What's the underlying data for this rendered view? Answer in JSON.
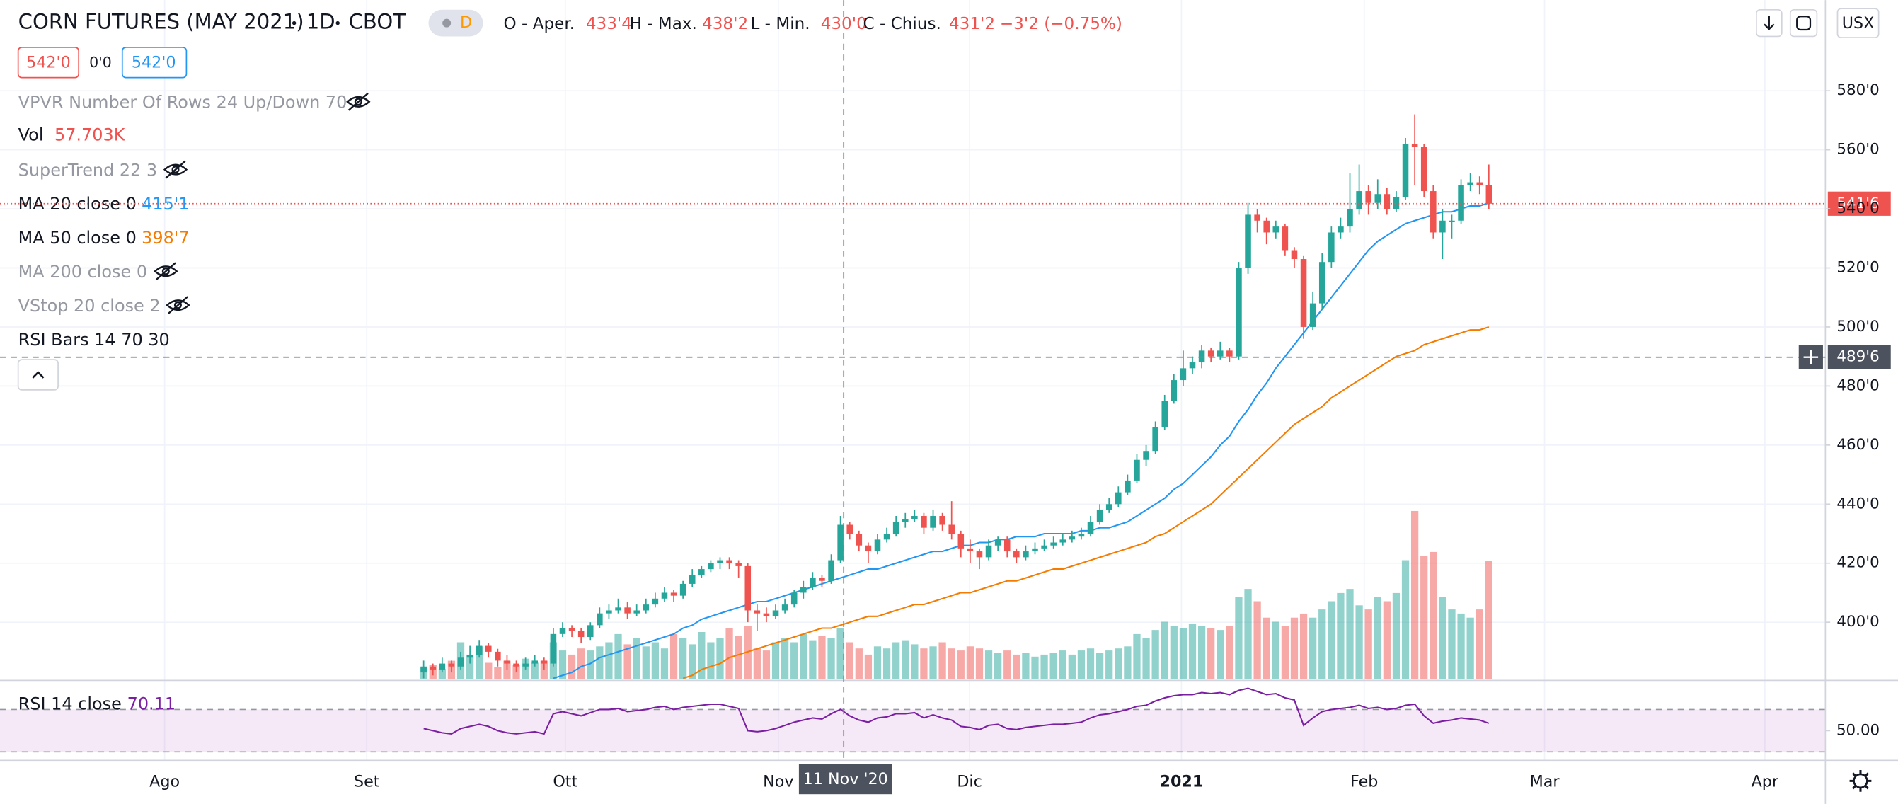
{
  "header": {
    "symbol": "CORN FUTURES (MAY 2021)",
    "interval": "1D",
    "exchange": "CBOT",
    "badge": "D",
    "ohlc_legend": [
      {
        "label": "O - Aper.",
        "value": "433'4"
      },
      {
        "label": "H - Max.",
        "value": "438'2"
      },
      {
        "label": "L - Min.",
        "value": "430'0"
      },
      {
        "label": "C - Chius.",
        "value": "431'2"
      }
    ],
    "change": "−3'2 (−0.75%)",
    "sell": "542'0",
    "spread": "0'0",
    "buy": "542'0",
    "currency": "USX",
    "indicators": [
      "VPVR Number Of Rows 24 Up/Down 70",
      "SuperTrend 22 3",
      "MA 200 close 0",
      "VStop 20 close 2",
      "RSI Bars 14 70 30"
    ]
  },
  "chart_data": {
    "type": "candlestick",
    "up_color": "#26a69a",
    "down_color": "#ef5350",
    "ohlc": [
      [
        383,
        387,
        381,
        385
      ],
      [
        385,
        386,
        382,
        384
      ],
      [
        384,
        388,
        383,
        386
      ],
      [
        386,
        387,
        383,
        385
      ],
      [
        385,
        390,
        384,
        388
      ],
      [
        388,
        392,
        386,
        389
      ],
      [
        389,
        394,
        388,
        392
      ],
      [
        392,
        393,
        388,
        390
      ],
      [
        390,
        391,
        385,
        387
      ],
      [
        387,
        389,
        384,
        386
      ],
      [
        386,
        387,
        383,
        385
      ],
      [
        385,
        388,
        384,
        386
      ],
      [
        386,
        389,
        385,
        387
      ],
      [
        387,
        388,
        384,
        386
      ],
      [
        386,
        398,
        385,
        396
      ],
      [
        396,
        400,
        395,
        398
      ],
      [
        398,
        399,
        395,
        397
      ],
      [
        397,
        398,
        393,
        395
      ],
      [
        395,
        400,
        394,
        399
      ],
      [
        399,
        405,
        398,
        403
      ],
      [
        403,
        406,
        401,
        404
      ],
      [
        404,
        408,
        403,
        405
      ],
      [
        405,
        407,
        401,
        403
      ],
      [
        403,
        406,
        402,
        404
      ],
      [
        404,
        408,
        403,
        406
      ],
      [
        406,
        410,
        405,
        408
      ],
      [
        408,
        412,
        407,
        410
      ],
      [
        410,
        411,
        407,
        409
      ],
      [
        409,
        414,
        408,
        413
      ],
      [
        413,
        418,
        412,
        416
      ],
      [
        416,
        419,
        415,
        418
      ],
      [
        418,
        421,
        417,
        420
      ],
      [
        420,
        422,
        418,
        421
      ],
      [
        421,
        422,
        418,
        420
      ],
      [
        420,
        421,
        415,
        419
      ],
      [
        419,
        420,
        400,
        404
      ],
      [
        404,
        406,
        397,
        403
      ],
      [
        403,
        405,
        400,
        402
      ],
      [
        402,
        406,
        401,
        404
      ],
      [
        404,
        408,
        403,
        406
      ],
      [
        406,
        411,
        405,
        410
      ],
      [
        410,
        414,
        408,
        412
      ],
      [
        412,
        417,
        411,
        415
      ],
      [
        415,
        416,
        412,
        414
      ],
      [
        414,
        423,
        413,
        421
      ],
      [
        421,
        436,
        420,
        433
      ],
      [
        433,
        434,
        428,
        430
      ],
      [
        430,
        431,
        424,
        426
      ],
      [
        426,
        427,
        420,
        424
      ],
      [
        424,
        430,
        423,
        428
      ],
      [
        428,
        432,
        427,
        430
      ],
      [
        430,
        436,
        429,
        434
      ],
      [
        434,
        437,
        432,
        435
      ],
      [
        435,
        438,
        434,
        436
      ],
      [
        436,
        437,
        430,
        432
      ],
      [
        432,
        438,
        431,
        436
      ],
      [
        436,
        437,
        431,
        433
      ],
      [
        433,
        441,
        428,
        430
      ],
      [
        430,
        431,
        422,
        425
      ],
      [
        425,
        428,
        420,
        424
      ],
      [
        424,
        425,
        418,
        422
      ],
      [
        422,
        428,
        421,
        426
      ],
      [
        426,
        429,
        424,
        428
      ],
      [
        428,
        429,
        422,
        424
      ],
      [
        424,
        425,
        420,
        422
      ],
      [
        422,
        426,
        421,
        424
      ],
      [
        424,
        427,
        423,
        425
      ],
      [
        425,
        428,
        424,
        426
      ],
      [
        426,
        429,
        425,
        427
      ],
      [
        427,
        430,
        426,
        428
      ],
      [
        428,
        431,
        427,
        429
      ],
      [
        429,
        432,
        428,
        430
      ],
      [
        430,
        436,
        429,
        434
      ],
      [
        434,
        440,
        433,
        438
      ],
      [
        438,
        442,
        437,
        440
      ],
      [
        440,
        446,
        439,
        444
      ],
      [
        444,
        450,
        443,
        448
      ],
      [
        448,
        457,
        447,
        455
      ],
      [
        455,
        460,
        453,
        458
      ],
      [
        458,
        468,
        457,
        466
      ],
      [
        466,
        477,
        465,
        475
      ],
      [
        475,
        484,
        474,
        482
      ],
      [
        482,
        492,
        480,
        486
      ],
      [
        486,
        490,
        484,
        488
      ],
      [
        488,
        494,
        486,
        492
      ],
      [
        492,
        493,
        488,
        490
      ],
      [
        490,
        495,
        489,
        492
      ],
      [
        492,
        493,
        488,
        490
      ],
      [
        490,
        522,
        489,
        520
      ],
      [
        520,
        542,
        518,
        538
      ],
      [
        538,
        540,
        532,
        536
      ],
      [
        536,
        537,
        528,
        532
      ],
      [
        532,
        536,
        530,
        534
      ],
      [
        534,
        535,
        524,
        526
      ],
      [
        526,
        527,
        520,
        523
      ],
      [
        523,
        524,
        496,
        500
      ],
      [
        500,
        512,
        499,
        508
      ],
      [
        508,
        525,
        506,
        522
      ],
      [
        522,
        534,
        520,
        532
      ],
      [
        532,
        537,
        530,
        534
      ],
      [
        534,
        552,
        532,
        540
      ],
      [
        540,
        555,
        538,
        546
      ],
      [
        546,
        548,
        538,
        542
      ],
      [
        542,
        550,
        540,
        545
      ],
      [
        545,
        547,
        538,
        540
      ],
      [
        540,
        546,
        539,
        544
      ],
      [
        544,
        564,
        543,
        562
      ],
      [
        562,
        572,
        548,
        561
      ],
      [
        561,
        562,
        544,
        546
      ],
      [
        546,
        548,
        530,
        532
      ],
      [
        532,
        540,
        523,
        536
      ],
      [
        536,
        538,
        530,
        536
      ],
      [
        536,
        550,
        535,
        548
      ],
      [
        548,
        552,
        546,
        549
      ],
      [
        549,
        551,
        545,
        548
      ],
      [
        548,
        555,
        540,
        541.75
      ]
    ],
    "ylim": [
      380.7,
      610.7
    ],
    "yticks": [
      {
        "value": 400,
        "label": "400'0"
      },
      {
        "value": 420,
        "label": "420'0"
      },
      {
        "value": 440,
        "label": "440'0"
      },
      {
        "value": 460,
        "label": "460'0"
      },
      {
        "value": 480,
        "label": "480'0"
      },
      {
        "value": 500,
        "label": "500'0"
      },
      {
        "value": 520,
        "label": "520'0"
      },
      {
        "value": 540,
        "label": "540'0"
      },
      {
        "value": 560,
        "label": "560'0"
      },
      {
        "value": 580,
        "label": "580'0"
      }
    ],
    "grid": true,
    "last_price": {
      "value": 541.75,
      "label": "541'6"
    },
    "crosshair": {
      "value": 489.75,
      "label": "489'6",
      "date": "11 Nov '20"
    },
    "time_labels": [
      "Ago",
      "Set",
      "Ott",
      "Nov",
      "Dic",
      "2021",
      "Feb",
      "Mar",
      "Apr"
    ],
    "volume": {
      "name": "Vol",
      "legend_value": "57.703K",
      "values": [
        6000,
        7000,
        5000,
        9000,
        18000,
        12000,
        16000,
        8000,
        6000,
        9000,
        7000,
        10000,
        8000,
        9000,
        18000,
        14000,
        12000,
        15000,
        14000,
        16000,
        18000,
        22000,
        17000,
        20000,
        16000,
        18000,
        15000,
        22000,
        20000,
        17000,
        23000,
        18000,
        20000,
        25000,
        21000,
        26000,
        15000,
        14000,
        18000,
        20000,
        18000,
        22000,
        19000,
        21000,
        20000,
        25000,
        18000,
        15000,
        12000,
        16000,
        15000,
        18000,
        19000,
        17000,
        15000,
        16000,
        18000,
        15000,
        14000,
        16000,
        15000,
        14000,
        13000,
        14000,
        12000,
        13000,
        11000,
        12000,
        13000,
        14000,
        12000,
        14000,
        15000,
        13000,
        14000,
        15000,
        16000,
        22000,
        20000,
        24000,
        28000,
        26000,
        25000,
        27000,
        26000,
        25000,
        24000,
        26000,
        40000,
        44000,
        38000,
        30000,
        28000,
        26000,
        30000,
        32000,
        30000,
        34000,
        38000,
        42000,
        44000,
        36000,
        34000,
        40000,
        38000,
        42000,
        58000,
        82000,
        60000,
        62000,
        40000,
        34000,
        32000,
        30000,
        34000,
        57703
      ]
    },
    "series": [
      {
        "name": "MA 20 close 0",
        "color": "#2196f3",
        "legend_value": "415'1",
        "values": [
          null,
          null,
          null,
          null,
          null,
          null,
          null,
          null,
          null,
          null,
          null,
          null,
          null,
          null,
          381,
          382,
          383,
          385,
          386,
          388,
          389,
          390,
          391,
          392,
          393,
          394,
          395,
          396,
          398,
          399,
          401,
          402,
          403,
          404,
          405,
          406,
          407,
          407,
          408,
          409,
          410,
          411,
          412,
          413,
          414,
          415,
          416,
          417,
          418,
          418,
          419,
          420,
          421,
          422,
          423,
          424,
          424,
          425,
          426,
          426,
          427,
          427,
          428,
          428,
          429,
          429,
          429,
          430,
          430,
          430,
          430,
          431,
          431,
          432,
          432,
          433,
          434,
          436,
          438,
          440,
          442,
          445,
          447,
          450,
          453,
          456,
          460,
          463,
          468,
          472,
          477,
          481,
          486,
          490,
          494,
          498,
          502,
          506,
          510,
          514,
          518,
          522,
          526,
          529,
          531,
          533,
          535,
          536,
          537,
          538,
          539,
          539,
          540,
          541,
          541,
          542
        ]
      },
      {
        "name": "MA 50 close 0",
        "color": "#f57c00",
        "legend_value": "398'7",
        "values": [
          null,
          null,
          null,
          null,
          null,
          null,
          null,
          null,
          null,
          null,
          null,
          null,
          null,
          null,
          null,
          null,
          null,
          null,
          null,
          null,
          null,
          null,
          null,
          null,
          null,
          null,
          null,
          null,
          381,
          382,
          384,
          385,
          386,
          388,
          389,
          390,
          391,
          392,
          393,
          394,
          395,
          396,
          397,
          398,
          398,
          399,
          400,
          401,
          402,
          402,
          403,
          404,
          405,
          406,
          406,
          407,
          408,
          409,
          410,
          410,
          411,
          412,
          413,
          414,
          414,
          415,
          416,
          417,
          418,
          418,
          419,
          420,
          421,
          422,
          423,
          424,
          425,
          426,
          427,
          429,
          430,
          432,
          434,
          436,
          438,
          440,
          443,
          446,
          449,
          452,
          455,
          458,
          461,
          464,
          467,
          469,
          471,
          473,
          476,
          478,
          480,
          482,
          484,
          486,
          488,
          490,
          491,
          492,
          494,
          495,
          496,
          497,
          498,
          499,
          499,
          500
        ]
      }
    ],
    "rsi": {
      "name": "RSI 14 close",
      "color": "#7b1fa2",
      "band": [
        30,
        70
      ],
      "ylim": [
        22,
        94
      ],
      "yticks": [
        {
          "value": 50,
          "label": "50.00"
        }
      ],
      "values": [
        52,
        50,
        48,
        47,
        52,
        54,
        56,
        54,
        50,
        48,
        47,
        48,
        49,
        47,
        66,
        68,
        66,
        64,
        67,
        70,
        70,
        71,
        68,
        69,
        70,
        72,
        73,
        70,
        72,
        73,
        74,
        75,
        75,
        73,
        71,
        50,
        49,
        50,
        52,
        55,
        58,
        60,
        62,
        61,
        66,
        70.11,
        64,
        60,
        58,
        62,
        63,
        66,
        66,
        67,
        62,
        65,
        62,
        60,
        54,
        53,
        51,
        55,
        56,
        52,
        51,
        53,
        54,
        55,
        56,
        56,
        57,
        58,
        62,
        65,
        66,
        68,
        70,
        73,
        74,
        78,
        81,
        83,
        84,
        84,
        86,
        85,
        86,
        84,
        88,
        90,
        87,
        84,
        85,
        81,
        79,
        55,
        62,
        68,
        70,
        71,
        72,
        74,
        71,
        72,
        70,
        71,
        74,
        75,
        64,
        57,
        59,
        60,
        62,
        61,
        60,
        57
      ]
    }
  }
}
